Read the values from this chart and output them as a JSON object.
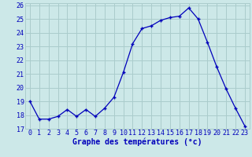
{
  "hours": [
    0,
    1,
    2,
    3,
    4,
    5,
    6,
    7,
    8,
    9,
    10,
    11,
    12,
    13,
    14,
    15,
    16,
    17,
    18,
    19,
    20,
    21,
    22,
    23
  ],
  "temperatures": [
    19.0,
    17.7,
    17.7,
    17.9,
    18.4,
    17.9,
    18.4,
    17.9,
    18.5,
    19.3,
    21.1,
    23.2,
    24.3,
    24.5,
    24.9,
    25.1,
    25.2,
    25.8,
    25.0,
    23.3,
    21.5,
    19.9,
    18.5,
    17.2
  ],
  "line_color": "#0000bb",
  "marker": "+",
  "bg_color": "#cce8e8",
  "grid_color": "#aacccc",
  "xlabel": "Graphe des températures (°c)",
  "xlabel_color": "#0000bb",
  "xlabel_fontsize": 7,
  "tick_color": "#0000bb",
  "tick_fontsize": 6,
  "ylim": [
    17,
    26
  ],
  "yticks": [
    17,
    18,
    19,
    20,
    21,
    22,
    23,
    24,
    25,
    26
  ],
  "xlim": [
    -0.5,
    23.5
  ],
  "xticks": [
    0,
    1,
    2,
    3,
    4,
    5,
    6,
    7,
    8,
    9,
    10,
    11,
    12,
    13,
    14,
    15,
    16,
    17,
    18,
    19,
    20,
    21,
    22,
    23
  ]
}
